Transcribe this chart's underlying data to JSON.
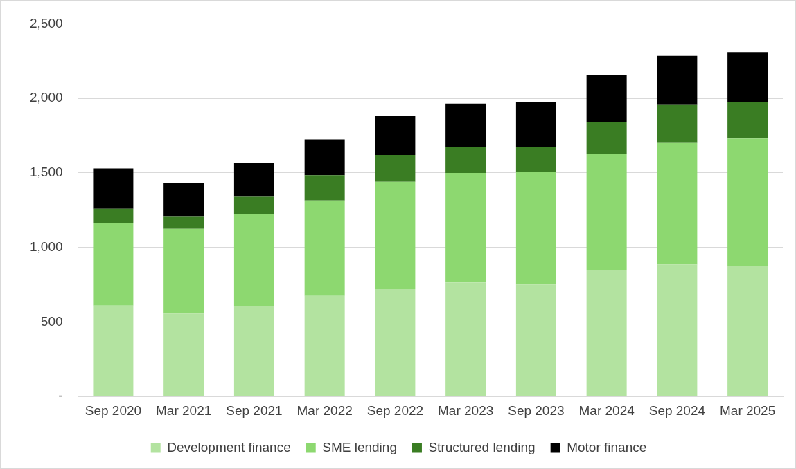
{
  "chart_data": {
    "type": "bar",
    "stacked": true,
    "categories": [
      "Sep 2020",
      "Mar 2021",
      "Sep 2021",
      "Mar 2022",
      "Sep 2022",
      "Mar 2023",
      "Sep 2023",
      "Mar 2024",
      "Sep 2024",
      "Mar 2025"
    ],
    "series": [
      {
        "name": "Development finance",
        "color": "#b3e3a0",
        "values": [
          610,
          555,
          605,
          675,
          720,
          765,
          750,
          850,
          885,
          875
        ]
      },
      {
        "name": "SME lending",
        "color": "#8dd870",
        "values": [
          555,
          570,
          620,
          640,
          720,
          735,
          755,
          780,
          815,
          855
        ]
      },
      {
        "name": "Structured lending",
        "color": "#3a7d23",
        "values": [
          95,
          85,
          115,
          170,
          180,
          175,
          170,
          210,
          255,
          245
        ]
      },
      {
        "name": "Motor finance",
        "color": "#000000",
        "values": [
          270,
          225,
          225,
          240,
          260,
          290,
          300,
          315,
          330,
          335
        ]
      }
    ],
    "ylim": [
      0,
      2500
    ],
    "yticks": [
      {
        "value": 0,
        "label": "-"
      },
      {
        "value": 500,
        "label": "500"
      },
      {
        "value": 1000,
        "label": "1,000"
      },
      {
        "value": 1500,
        "label": "1,500"
      },
      {
        "value": 2000,
        "label": "2,000"
      },
      {
        "value": 2500,
        "label": "2,500"
      }
    ],
    "grid": "y",
    "legend": "bottom"
  }
}
